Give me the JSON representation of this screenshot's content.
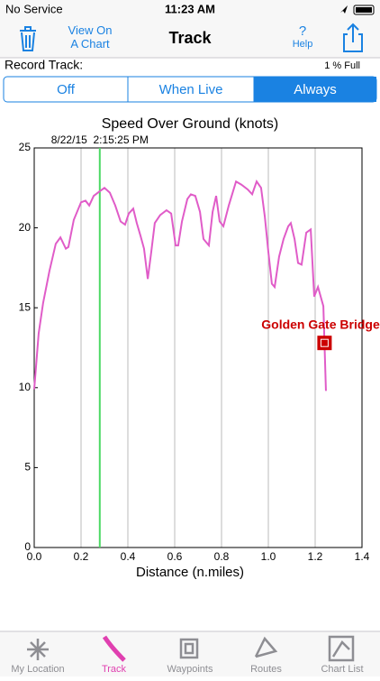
{
  "status_bar": {
    "carrier": "No Service",
    "time": "11:23 AM"
  },
  "nav_bar": {
    "left_button": "View On\nA Chart",
    "title": "Track",
    "help": "?",
    "help_label": "Help"
  },
  "record": {
    "label": "Record Track:",
    "usage": "1 % Full",
    "segments": [
      "Off",
      "When Live",
      "Always"
    ],
    "selected": 2
  },
  "chart_data": {
    "type": "line",
    "title": "Speed Over Ground (knots)",
    "xlabel": "Distance (n.miles)",
    "x": [
      0,
      0.019,
      0.038,
      0.065,
      0.092,
      0.112,
      0.135,
      0.146,
      0.169,
      0.2,
      0.219,
      0.235,
      0.254,
      0.281,
      0.3,
      0.323,
      0.346,
      0.369,
      0.388,
      0.404,
      0.423,
      0.438,
      0.454,
      0.469,
      0.485,
      0.5,
      0.515,
      0.538,
      0.565,
      0.585,
      0.604,
      0.615,
      0.631,
      0.654,
      0.669,
      0.688,
      0.708,
      0.723,
      0.746,
      0.762,
      0.777,
      0.792,
      0.808,
      0.831,
      0.862,
      0.885,
      0.912,
      0.931,
      0.95,
      0.969,
      0.985,
      1.0,
      1.015,
      1.027,
      1.046,
      1.065,
      1.085,
      1.096,
      1.112,
      1.127,
      1.142,
      1.162,
      1.181,
      1.196,
      1.212,
      1.235,
      1.246
    ],
    "values": [
      9.9,
      13.4,
      15.3,
      17.3,
      19.0,
      19.4,
      18.7,
      18.8,
      20.5,
      21.6,
      21.7,
      21.4,
      22.0,
      22.3,
      22.5,
      22.2,
      21.4,
      20.4,
      20.2,
      20.9,
      21.2,
      20.3,
      19.5,
      18.7,
      16.8,
      18.5,
      20.3,
      20.8,
      21.1,
      20.9,
      18.9,
      18.9,
      20.4,
      21.8,
      22.1,
      22.0,
      21.0,
      19.3,
      18.9,
      21.0,
      22.0,
      20.4,
      20.1,
      21.4,
      22.9,
      22.7,
      22.4,
      22.1,
      22.9,
      22.5,
      20.7,
      18.5,
      16.5,
      16.3,
      18.2,
      19.3,
      20.1,
      20.3,
      19.3,
      17.8,
      17.7,
      19.7,
      19.9,
      15.7,
      16.3,
      15.1,
      9.8
    ],
    "color": "#e05cc8",
    "xlim": [
      0,
      1.4
    ],
    "xticks": [
      {
        "value": 0,
        "label": "0.0"
      },
      0.2,
      0.4,
      0.6,
      0.8,
      {
        "value": 1,
        "label": "1.0"
      },
      1.2,
      1.4
    ],
    "ylim": [
      0,
      25
    ],
    "yticks": [
      0,
      5,
      10,
      15,
      20,
      25
    ],
    "grid": "x",
    "cursor": {
      "x": 0.28,
      "label": "8/22/15  2:15:25 PM",
      "color": "#4cd964"
    },
    "annotation": {
      "text": "Golden Gate Bridge",
      "x": 1.24,
      "y": 12.8,
      "color": "#cc0000"
    }
  },
  "tab_bar": {
    "tabs": [
      "My Location",
      "Track",
      "Waypoints",
      "Routes",
      "Chart List"
    ],
    "selected": 1
  }
}
